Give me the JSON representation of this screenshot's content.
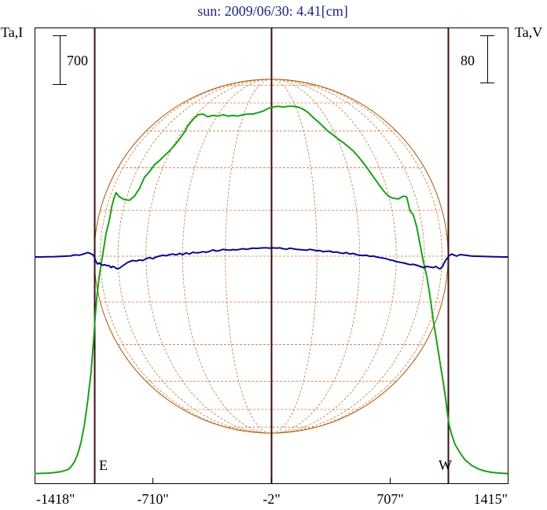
{
  "chart_data": {
    "type": "line",
    "title": "sun: 2009/06/30: 4.41[cm]",
    "left_axis_label": "Ta,I",
    "right_axis_label": "Ta,V",
    "left_scale_bar": "700",
    "right_scale_bar": "80",
    "x_tick_labels": [
      "-1418\"",
      "-710\"",
      "-2\"",
      "707\"",
      "1415\""
    ],
    "x_tick_values": [
      -1418,
      -710,
      -2,
      707,
      1415
    ],
    "xlim": [
      -1418,
      1415
    ],
    "limb_lines_arcsec": [
      -1061,
      -2,
      1058
    ],
    "limb_labels": [
      "E",
      "W"
    ],
    "grid": false,
    "colors": {
      "stokes_i": "#1aa01a",
      "stokes_v": "#0a0a8a",
      "disk": "#b5651d",
      "frame": "#000000",
      "limb_lines": "#3b0d0d",
      "title": "#1a237e"
    },
    "series": [
      {
        "key": "stokes_i",
        "axis": "left",
        "x": [
          -1418,
          -1380,
          -1340,
          -1300,
          -1260,
          -1220,
          -1200,
          -1180,
          -1160,
          -1140,
          -1120,
          -1100,
          -1080,
          -1070,
          -1062,
          -1055,
          -1045,
          -1030,
          -1010,
          -990,
          -970,
          -955,
          -940,
          -930,
          -910,
          -880,
          -850,
          -820,
          -790,
          -760,
          -730,
          -700,
          -670,
          -640,
          -610,
          -580,
          -550,
          -520,
          -500,
          -470,
          -440,
          -410,
          -380,
          -350,
          -320,
          -290,
          -260,
          -230,
          -200,
          -170,
          -140,
          -110,
          -80,
          -50,
          -20,
          10,
          40,
          70,
          100,
          130,
          160,
          190,
          220,
          250,
          280,
          310,
          340,
          370,
          400,
          430,
          460,
          490,
          520,
          550,
          580,
          610,
          640,
          670,
          700,
          730,
          760,
          790,
          810,
          830,
          850,
          870,
          890,
          910,
          930,
          950,
          970,
          990,
          1010,
          1030,
          1045,
          1055,
          1065,
          1080,
          1100,
          1130,
          1160,
          1200,
          1240,
          1280,
          1320,
          1360,
          1415
        ],
        "y": [
          5,
          7,
          10,
          18,
          30,
          60,
          100,
          170,
          280,
          450,
          700,
          1050,
          1450,
          1750,
          2000,
          2250,
          2550,
          2850,
          3150,
          3450,
          3650,
          3850,
          3980,
          4040,
          3980,
          3940,
          3930,
          3990,
          4100,
          4260,
          4340,
          4440,
          4500,
          4570,
          4640,
          4720,
          4810,
          4910,
          5000,
          5090,
          5160,
          5170,
          5130,
          5150,
          5140,
          5160,
          5140,
          5150,
          5140,
          5160,
          5170,
          5170,
          5190,
          5210,
          5250,
          5270,
          5280,
          5270,
          5280,
          5280,
          5270,
          5240,
          5190,
          5120,
          5060,
          4990,
          4920,
          4870,
          4810,
          4760,
          4700,
          4640,
          4560,
          4470,
          4370,
          4270,
          4170,
          4070,
          3990,
          3960,
          3950,
          3990,
          3980,
          3780,
          3720,
          3550,
          3300,
          3050,
          2850,
          2550,
          2200,
          1900,
          1600,
          1300,
          1050,
          850,
          700,
          560,
          420,
          300,
          200,
          120,
          70,
          40,
          22,
          12,
          5
        ]
      },
      {
        "key": "stokes_v",
        "axis": "right",
        "x": [
          -1418,
          -1380,
          -1340,
          -1300,
          -1250,
          -1200,
          -1180,
          -1150,
          -1120,
          -1100,
          -1085,
          -1070,
          -1060,
          -1050,
          -1040,
          -1030,
          -1020,
          -1010,
          -1000,
          -985,
          -970,
          -960,
          -950,
          -940,
          -925,
          -910,
          -895,
          -880,
          -865,
          -850,
          -830,
          -810,
          -790,
          -770,
          -750,
          -730,
          -710,
          -690,
          -670,
          -650,
          -630,
          -610,
          -590,
          -570,
          -550,
          -530,
          -510,
          -490,
          -470,
          -450,
          -430,
          -410,
          -390,
          -370,
          -350,
          -330,
          -310,
          -290,
          -270,
          -250,
          -230,
          -210,
          -190,
          -170,
          -150,
          -130,
          -110,
          -90,
          -70,
          -50,
          -30,
          -10,
          10,
          30,
          50,
          70,
          90,
          110,
          130,
          150,
          170,
          190,
          210,
          230,
          250,
          270,
          290,
          310,
          330,
          350,
          370,
          390,
          410,
          430,
          450,
          470,
          490,
          510,
          530,
          550,
          570,
          590,
          610,
          630,
          650,
          670,
          690,
          710,
          730,
          750,
          770,
          790,
          810,
          830,
          850,
          870,
          890,
          910,
          930,
          950,
          970,
          985,
          1000,
          1010,
          1020,
          1030,
          1040,
          1050,
          1058,
          1068,
          1080,
          1095,
          1110,
          1130,
          1160,
          1200,
          1260,
          1320,
          1380,
          1415
        ],
        "y": [
          0,
          0,
          0.3,
          0.5,
          1.2,
          1.8,
          3.5,
          3,
          5.5,
          7.5,
          6,
          4,
          0,
          -8,
          -12,
          -10,
          -13,
          -14,
          -13,
          -14.5,
          -15,
          -18,
          -16,
          -17,
          -20,
          -19,
          -16,
          -13,
          -10,
          -8,
          -6,
          -7,
          -5,
          -6,
          -3,
          -1,
          -3,
          0,
          1.5,
          3,
          2,
          4,
          5,
          3.5,
          6,
          4,
          7,
          5,
          8,
          7,
          7.5,
          9,
          8,
          9.5,
          12,
          10,
          11,
          13,
          12,
          11.5,
          12.5,
          12,
          13,
          14,
          13,
          14,
          15,
          14.5,
          15,
          15.5,
          15.5,
          15,
          15.5,
          15,
          15.5,
          14,
          13,
          15,
          14,
          13,
          12.5,
          12,
          11.5,
          13,
          12,
          10.5,
          11,
          9,
          9.5,
          10,
          8,
          8.5,
          7,
          6,
          7.5,
          5,
          6,
          4,
          3,
          2.5,
          3,
          1,
          1.5,
          0,
          -1,
          -2,
          -3,
          -5,
          -6,
          -8,
          -9,
          -10,
          -11.5,
          -13,
          -12.5,
          -14,
          -16,
          -18,
          -16,
          -17,
          -18,
          -16,
          -19,
          -20,
          -18,
          -13,
          -7,
          -3,
          0,
          3,
          5,
          3,
          1.5,
          4,
          3,
          1.5,
          1,
          0.5,
          0,
          0
        ]
      }
    ]
  }
}
